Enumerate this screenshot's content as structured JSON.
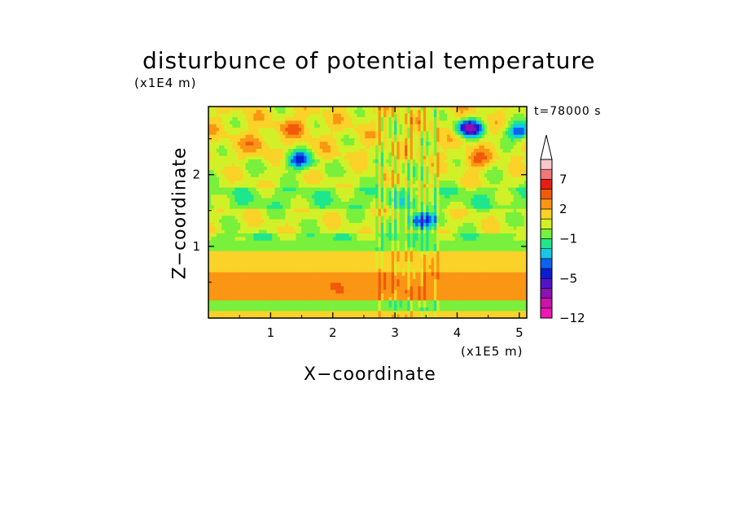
{
  "chart_data": {
    "type": "heatmap",
    "title": "disturbunce of potential temperature",
    "xlabel": "X−coordinate",
    "ylabel": "Z−coordinate",
    "x_unit": "(x1E5 m)",
    "y_unit": "(x1E4 m)",
    "time_label": "t=78000 s",
    "xlim": [
      0,
      5.12
    ],
    "ylim": [
      0,
      2.95
    ],
    "x_ticks": [
      1,
      2,
      3,
      4,
      5
    ],
    "y_ticks": [
      1,
      2
    ],
    "colorbar": {
      "levels": [
        -12,
        -10,
        -8,
        -6,
        -5,
        -4,
        -3,
        -2,
        -1,
        0,
        1,
        2,
        3,
        5,
        7,
        9,
        11
      ],
      "labels": [
        "−12",
        "−5",
        "−1",
        "2",
        "7"
      ],
      "label_values": [
        -12,
        -5,
        -1,
        2,
        7
      ],
      "extend_max": true,
      "colors": [
        "#f018b4",
        "#c814a8",
        "#8c10b4",
        "#5014c8",
        "#0a1ed2",
        "#0a64f0",
        "#14c8e6",
        "#1ee68c",
        "#78f03c",
        "#d2f028",
        "#fad228",
        "#fa9614",
        "#f05a0a",
        "#e61e14",
        "#f07878",
        "#f8c8c8"
      ]
    },
    "bands": [
      {
        "z_range": [
          0,
          0.1
        ],
        "value": 1.5
      },
      {
        "z_range": [
          0.1,
          0.25
        ],
        "value": -0.5
      },
      {
        "z_range": [
          0.25,
          0.45
        ],
        "value": 2.5
      },
      {
        "z_range": [
          0.45,
          0.65
        ],
        "value": 2.5
      },
      {
        "z_range": [
          0.65,
          0.95
        ],
        "value": 1.5
      },
      {
        "z_range": [
          0.95,
          1.2
        ],
        "value": -0.5
      },
      {
        "z_range": [
          1.2,
          1.5
        ],
        "value": 0.5
      },
      {
        "z_range": [
          1.5,
          1.8
        ],
        "value": -0.5
      },
      {
        "z_range": [
          1.8,
          2.2
        ],
        "value": 0.5
      },
      {
        "z_range": [
          2.2,
          2.95
        ],
        "value": 1.0
      }
    ],
    "features": [
      {
        "x": 1.45,
        "z": 2.2,
        "value": -4
      },
      {
        "x": 0.8,
        "z": 2.45,
        "value": 2.5
      },
      {
        "x": 1.4,
        "z": 2.65,
        "value": 3
      },
      {
        "x": 4.2,
        "z": 2.65,
        "value": -6
      },
      {
        "x": 3.4,
        "z": 1.35,
        "value": -5
      },
      {
        "x": 4.3,
        "z": 2.2,
        "value": 3
      },
      {
        "x": 5.0,
        "z": 2.6,
        "value": -4
      },
      {
        "x": 2.0,
        "z": 0.5,
        "value": 3
      }
    ]
  }
}
